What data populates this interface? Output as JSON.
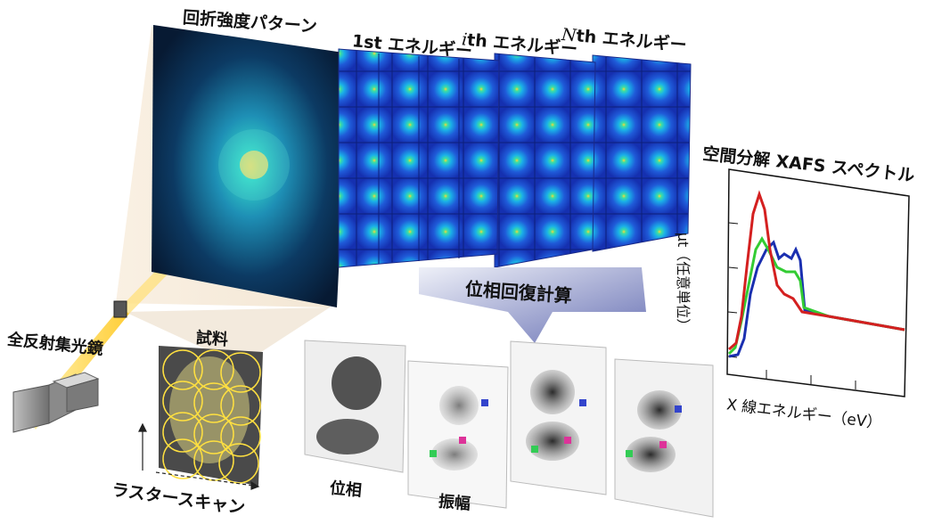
{
  "labels": {
    "diffraction_pattern": "回折強度パターン",
    "first_energy": "1st エネルギー",
    "ith_energy_prefix": "i",
    "ith_energy_suffix": "th エネルギー",
    "nth_energy_prefix": "N",
    "nth_energy_suffix": "th エネルギー",
    "phase_retrieval": "位相回復計算",
    "xafs_title": "空間分解 XAFS スペクトル",
    "mirror": "全反射集光鏡",
    "sample": "試料",
    "raster_scan": "ラスタースキャン",
    "phase": "位相",
    "amplitude": "振幅",
    "x_axis": "X 線エネルギー（eV）",
    "y_axis": "μt（任意単位）"
  },
  "colors": {
    "spectrum_red": "#d42020",
    "spectrum_green": "#33cc33",
    "spectrum_blue": "#1a2fb0",
    "diffraction_bg": "#0a1e3c",
    "pattern_blue": "#1f5ad8",
    "beam": "#ffd84a"
  }
}
